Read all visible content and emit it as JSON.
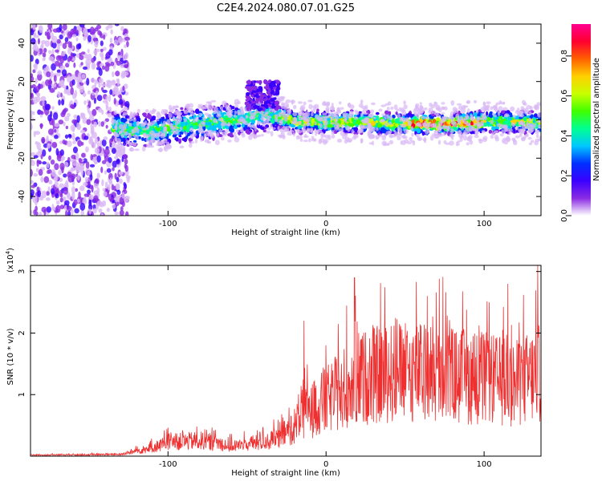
{
  "title": "C2E4.2024.080.07.01.G25",
  "colorbar": {
    "label": "Normalized spectral amplitude",
    "ticks": [
      "0.0",
      "0.2",
      "0.4",
      "0.6",
      "0.8"
    ],
    "colors": [
      "#ffffff",
      "#8a2be2",
      "#3a00ff",
      "#0030ff",
      "#00c8ff",
      "#00ff90",
      "#40ff00",
      "#c8ff00",
      "#ffd000",
      "#ff6000",
      "#ff0030",
      "#ff0090"
    ]
  },
  "chart_data": [
    {
      "type": "heatmap",
      "xlabel": "Height of straight line (km)",
      "ylabel": "Frequency (Hz)",
      "xlim": [
        -187,
        136
      ],
      "ylim": [
        -50,
        50
      ],
      "xticks": [
        "-100",
        "0",
        "100"
      ],
      "yticks": [
        "40",
        "20",
        "0",
        "-20",
        "-40"
      ],
      "ridge": {
        "x": [
          -135,
          -110,
          -90,
          -70,
          -50,
          -40,
          -30,
          -20,
          0,
          20,
          40,
          60,
          80,
          100,
          120,
          136
        ],
        "y": [
          -4,
          -6,
          -3,
          -1,
          1,
          3,
          2,
          -1,
          -1,
          -1,
          -2,
          -2,
          -2,
          -1,
          -1,
          -2
        ]
      },
      "clouds": [
        {
          "x": [
            -50,
            -30
          ],
          "y": [
            5,
            20
          ],
          "label": "upper feature near -40 km"
        }
      ],
      "noise_region_x": [
        -187,
        -125
      ]
    },
    {
      "type": "line",
      "xlabel": "Height of straight line (km)",
      "ylabel": "SNR (10 * v/v)",
      "yscale_label": "(x10",
      "yscale_exp": "4",
      "xlim": [
        -187,
        136
      ],
      "ylim": [
        0,
        3.1
      ],
      "xticks": [
        "-100",
        "0",
        "100"
      ],
      "yticks": [
        "1",
        "2",
        "3"
      ],
      "color": "#ee3030",
      "envelope": {
        "x": [
          -187,
          -130,
          -110,
          -100,
          -80,
          -70,
          -60,
          -40,
          -30,
          -20,
          -15,
          -10,
          0,
          10,
          20,
          40,
          60,
          80,
          100,
          120,
          136
        ],
        "y": [
          0.02,
          0.03,
          0.15,
          0.25,
          0.28,
          0.25,
          0.18,
          0.25,
          0.32,
          0.55,
          0.75,
          0.8,
          1.0,
          1.2,
          1.4,
          1.5,
          1.5,
          1.45,
          1.4,
          1.3,
          1.5
        ]
      },
      "peaks": [
        {
          "x": 18,
          "y": 2.9
        },
        {
          "x": -14,
          "y": 2.2
        },
        {
          "x": 115,
          "y": 2.8
        },
        {
          "x": 134,
          "y": 3.1
        }
      ]
    }
  ]
}
